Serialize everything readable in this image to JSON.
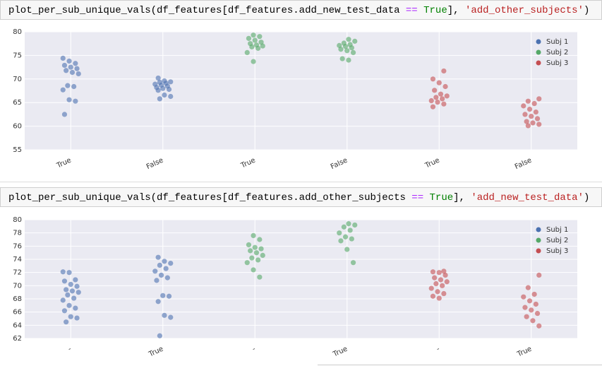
{
  "cells": [
    {
      "code": [
        {
          "text": "plot_per_sub_unique_vals(df_features[df_features.add_new_test_data ",
          "color": "#000000"
        },
        {
          "text": "==",
          "color": "#aa22ff"
        },
        {
          "text": " True",
          "color": "#008000"
        },
        {
          "text": "], ",
          "color": "#000000"
        },
        {
          "text": "'add_other_subjects'",
          "color": "#ba2121"
        },
        {
          "text": ")",
          "color": "#000000"
        }
      ]
    },
    {
      "code": [
        {
          "text": "plot_per_sub_unique_vals(df_features[df_features.add_other_subjects ",
          "color": "#000000"
        },
        {
          "text": "==",
          "color": "#aa22ff"
        },
        {
          "text": " True",
          "color": "#008000"
        },
        {
          "text": "], ",
          "color": "#000000"
        },
        {
          "text": "'add_new_test_data'",
          "color": "#ba2121"
        },
        {
          "text": ")",
          "color": "#000000"
        }
      ]
    }
  ],
  "chart_data": [
    {
      "type": "strip",
      "categories": [
        "True",
        "False",
        "True",
        "False",
        "True",
        "False"
      ],
      "ylim": [
        55,
        80
      ],
      "yticks": [
        55,
        60,
        65,
        70,
        75,
        80
      ],
      "grid": true,
      "legend": "upper right",
      "series": [
        {
          "name": "Subj 1",
          "color": "#4c72b0",
          "values": [
            [
              74.4,
              73.8,
              73.3,
              72.9,
              72.5,
              72.2,
              71.8,
              71.4,
              71.1,
              68.6,
              68.4,
              67.7,
              65.6,
              65.3,
              62.5
            ],
            [
              70.2,
              69.6,
              69.4,
              69.3,
              69.1,
              68.9,
              68.7,
              68.5,
              68.2,
              68.0,
              67.8,
              67.6,
              66.6,
              66.3,
              65.8
            ],
            null,
            null,
            null,
            null
          ]
        },
        {
          "name": "Subj 2",
          "color": "#55a868",
          "values": [
            null,
            null,
            [
              79.3,
              79.0,
              78.6,
              78.2,
              77.8,
              77.5,
              77.2,
              77.0,
              76.8,
              76.5,
              75.6,
              73.7
            ],
            [
              78.4,
              78.0,
              77.6,
              77.3,
              77.1,
              76.9,
              76.6,
              76.3,
              76.0,
              75.6,
              74.3,
              74.0
            ],
            null,
            null
          ]
        },
        {
          "name": "Subj 3",
          "color": "#c44e52",
          "values": [
            null,
            null,
            null,
            null,
            [
              71.7,
              70.0,
              69.2,
              68.4,
              67.6,
              66.8,
              66.4,
              66.1,
              65.8,
              65.4,
              65.1,
              64.7,
              64.1
            ],
            [
              65.8,
              65.3,
              64.8,
              64.3,
              63.6,
              63.0,
              62.5,
              62.1,
              61.6,
              61.0,
              60.7,
              60.4,
              60.1
            ]
          ]
        }
      ]
    },
    {
      "type": "strip",
      "categories": [
        "-",
        "True",
        "-",
        "True",
        "-",
        "True"
      ],
      "ylim": [
        62,
        80
      ],
      "yticks": [
        62,
        64,
        66,
        68,
        70,
        72,
        74,
        76,
        78,
        80
      ],
      "grid": true,
      "legend": "upper right",
      "series": [
        {
          "name": "Subj 1",
          "color": "#4c72b0",
          "values": [
            [
              72.1,
              72.0,
              70.9,
              70.7,
              70.2,
              69.9,
              69.4,
              69.2,
              69.0,
              68.6,
              68.1,
              67.8,
              67.0,
              66.6,
              66.2,
              65.3,
              65.1,
              64.5
            ],
            [
              74.3,
              73.7,
              73.4,
              73.1,
              72.6,
              72.2,
              71.6,
              71.2,
              70.8,
              68.5,
              68.4,
              67.6,
              65.5,
              65.2,
              62.4
            ],
            null,
            null,
            null,
            null
          ]
        },
        {
          "name": "Subj 2",
          "color": "#55a868",
          "values": [
            null,
            null,
            [
              77.6,
              77.0,
              76.2,
              75.8,
              75.6,
              75.3,
              75.0,
              74.6,
              74.2,
              73.9,
              73.5,
              72.4,
              71.3
            ],
            [
              79.4,
              79.2,
              78.9,
              78.4,
              78.0,
              77.4,
              77.1,
              76.8,
              75.5,
              73.5
            ],
            null,
            null
          ]
        },
        {
          "name": "Subj 3",
          "color": "#c44e52",
          "values": [
            null,
            null,
            null,
            null,
            [
              72.2,
              72.1,
              72.0,
              71.6,
              71.2,
              70.9,
              70.6,
              70.3,
              70.0,
              69.6,
              69.1,
              68.8,
              68.4,
              68.1
            ],
            [
              71.6,
              69.7,
              68.7,
              68.3,
              67.7,
              67.2,
              66.7,
              66.3,
              65.8,
              65.3,
              64.7,
              63.9
            ]
          ]
        }
      ]
    }
  ]
}
